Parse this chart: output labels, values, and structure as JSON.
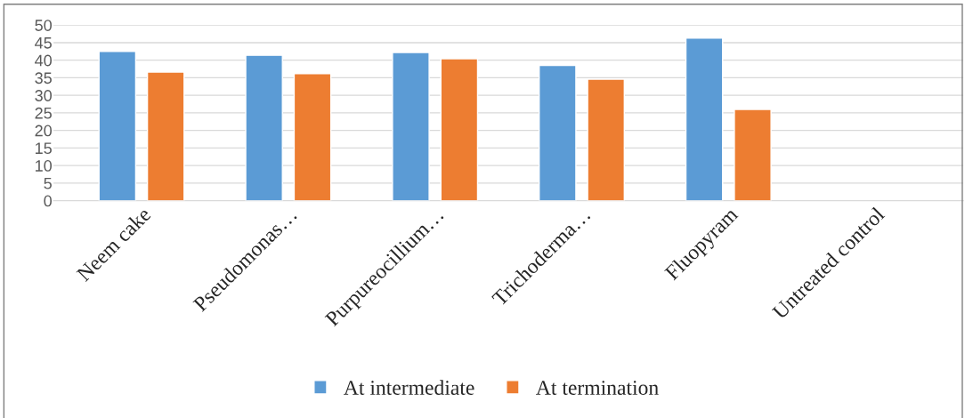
{
  "chart_data": {
    "type": "bar",
    "categories": [
      "Neem cake",
      "Pseudomonas…",
      "Purpureocillium…",
      "Trichoderma…",
      "Fluopyram",
      "Untreated control"
    ],
    "series": [
      {
        "name": "At intermediate",
        "color": "#5b9bd5",
        "values": [
          42.5,
          41.4,
          42.2,
          38.5,
          46.3,
          null
        ]
      },
      {
        "name": "At termination",
        "color": "#ed7d31",
        "values": [
          36.6,
          36.2,
          40.4,
          34.6,
          26.0,
          null
        ]
      }
    ],
    "ylim": [
      0,
      50
    ],
    "yticks": [
      0,
      5,
      10,
      15,
      20,
      25,
      30,
      35,
      40,
      45,
      50
    ],
    "grid": "y",
    "legend": "bottom"
  }
}
